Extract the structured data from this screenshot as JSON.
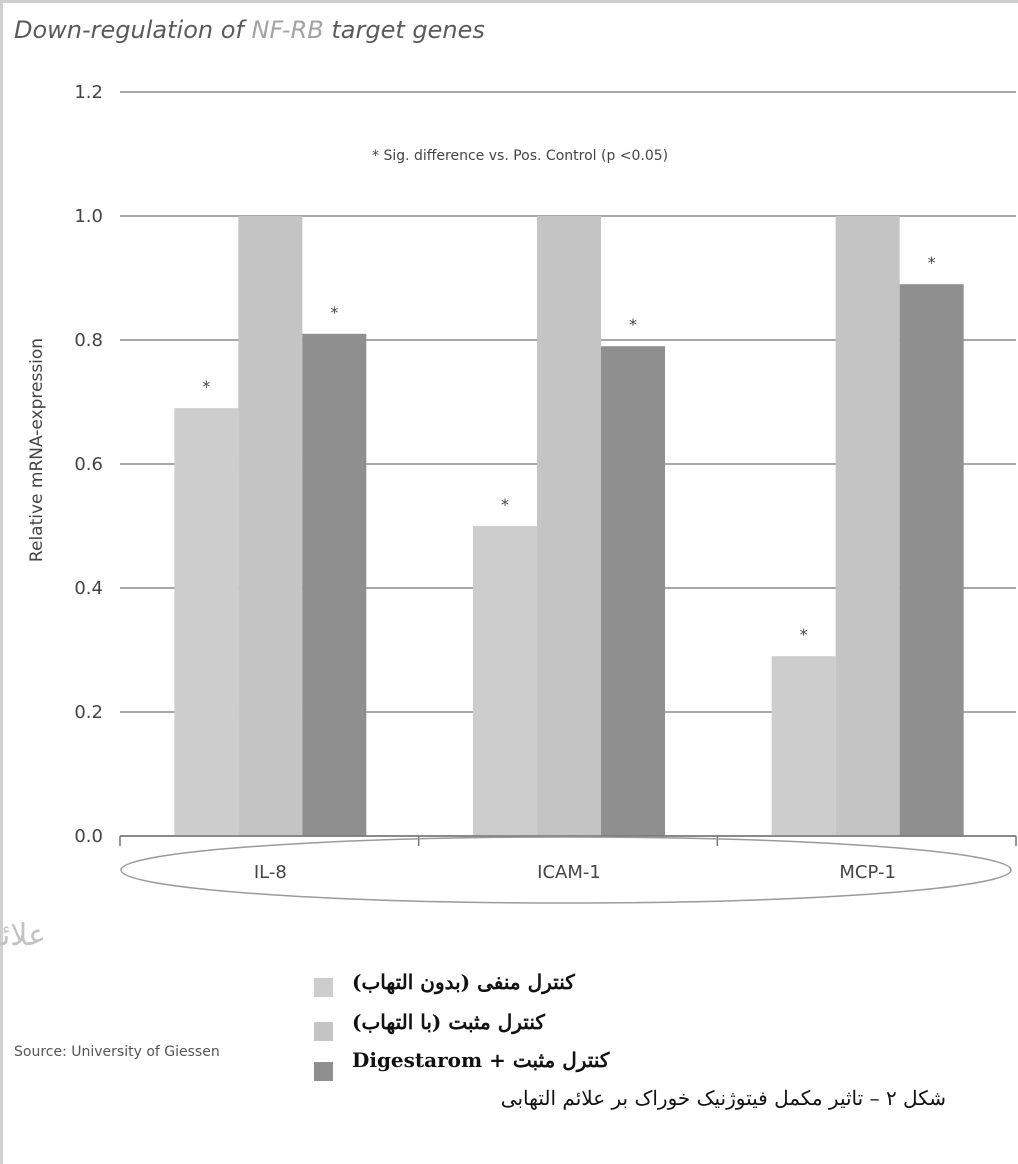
{
  "title": {
    "prefix": "Down-regulation of ",
    "accent": "NF-RB",
    "suffix": " target genes"
  },
  "annotation": "* Sig. difference vs. Pos. Control (p <0.05)",
  "ellipse_label": "علائم التهابی",
  "source": "Source: University of Giessen",
  "caption": "شکل ۲ – تاثیر مکمل فیتوژنیک خوراک بر علائم التهابی",
  "chart_data": {
    "type": "bar",
    "title": "Down-regulation of NF-RB target genes",
    "ylabel": "Relative mRNA-expression",
    "xlabel": "",
    "ylim": [
      0,
      1.2
    ],
    "yticks": [
      "0.0",
      "0.2",
      "0.4",
      "0.6",
      "0.8",
      "1.0",
      "1.2"
    ],
    "grid": true,
    "legend": "bottom",
    "categories": [
      "IL-8",
      "ICAM-1",
      "MCP-1"
    ],
    "series": [
      {
        "name": "کنترل منفی (بدون التهاب)",
        "values": [
          0.69,
          0.5,
          0.29
        ],
        "significant": [
          true,
          true,
          true
        ],
        "color": "#cdcdcd"
      },
      {
        "name": "کنترل مثبت (با التهاب)",
        "values": [
          1.0,
          1.0,
          1.0
        ],
        "significant": [
          false,
          false,
          false
        ],
        "color": "#c4c4c4"
      },
      {
        "name": "کنترل مثبت + Digestarom",
        "values": [
          0.81,
          0.79,
          0.89
        ],
        "significant": [
          true,
          true,
          true
        ],
        "color": "#8f8f8f"
      }
    ],
    "significance_marker": "*"
  }
}
